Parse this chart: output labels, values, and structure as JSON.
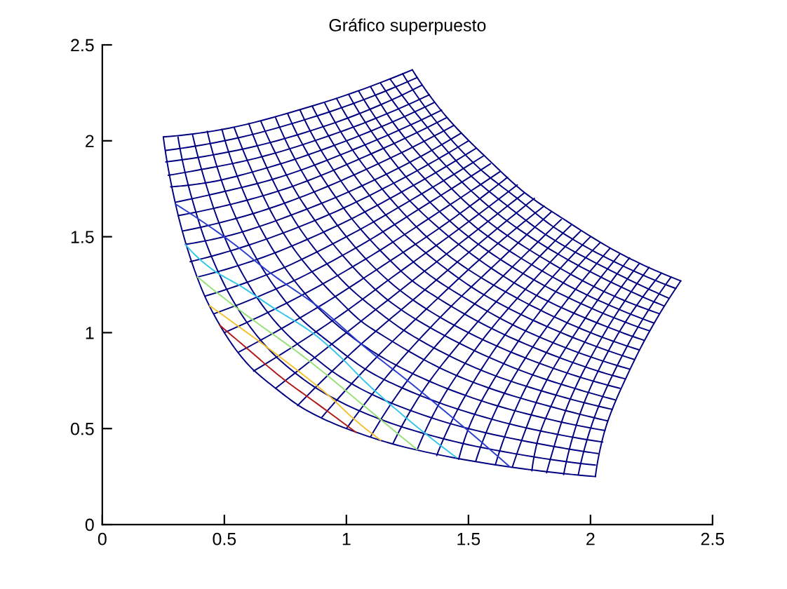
{
  "chart_data": {
    "type": "line",
    "title": "Gráfico superpuesto",
    "xlim": [
      0,
      2.5
    ],
    "ylim": [
      0,
      2.5
    ],
    "xticks": [
      0,
      0.5,
      1,
      1.5,
      2,
      2.5
    ],
    "yticks": [
      0,
      0.5,
      1,
      1.5,
      2,
      2.5
    ],
    "series": [
      {
        "color": "#000080",
        "x": [
          0.25,
          0.3,
          0.4,
          0.5,
          0.6,
          0.71,
          0.83,
          1.0,
          1.25,
          1.67,
          2.02
        ],
        "values": [
          2.02,
          1.67,
          1.25,
          1.0,
          0.83,
          0.71,
          0.6,
          0.5,
          0.4,
          0.3,
          0.25
        ]
      },
      {
        "color": "#000080",
        "x": [
          0.31,
          0.4,
          0.5,
          0.6,
          0.7,
          0.79,
          0.89,
          1.04,
          1.25,
          1.56,
          2.02
        ],
        "values": [
          2.02,
          1.56,
          1.25,
          1.04,
          0.89,
          0.79,
          0.7,
          0.6,
          0.5,
          0.4,
          0.31
        ]
      },
      {
        "color": "#000080",
        "x": [
          0.37,
          0.4,
          0.5,
          0.6,
          0.7,
          0.8,
          0.87,
          0.94,
          1.07,
          1.25,
          1.5,
          1.88,
          2.03
        ],
        "values": [
          2.03,
          1.88,
          1.5,
          1.25,
          1.07,
          0.94,
          0.87,
          0.8,
          0.7,
          0.6,
          0.5,
          0.4,
          0.37
        ]
      },
      {
        "color": "#000080",
        "x": [
          0.43,
          0.5,
          0.6,
          0.7,
          0.8,
          0.94,
          1.09,
          1.25,
          1.46,
          1.75,
          2.05
        ],
        "values": [
          2.05,
          1.75,
          1.46,
          1.25,
          1.09,
          0.94,
          0.8,
          0.7,
          0.6,
          0.5,
          0.43
        ]
      },
      {
        "color": "#000080",
        "x": [
          0.49,
          0.6,
          0.7,
          0.8,
          0.9,
          1.0,
          1.11,
          1.25,
          1.43,
          1.67,
          2.06
        ],
        "values": [
          2.06,
          1.67,
          1.43,
          1.25,
          1.11,
          1.0,
          0.9,
          0.8,
          0.7,
          0.6,
          0.49
        ]
      },
      {
        "color": "#000080",
        "x": [
          0.54,
          0.6,
          0.7,
          0.8,
          1.0,
          1.06,
          1.13,
          1.41,
          1.61,
          1.88,
          2.07
        ],
        "values": [
          2.07,
          1.88,
          1.61,
          1.41,
          1.13,
          1.06,
          1.0,
          0.8,
          0.7,
          0.6,
          0.54
        ]
      },
      {
        "color": "#000080",
        "x": [
          0.6,
          0.7,
          0.8,
          1.0,
          1.12,
          1.25,
          1.56,
          1.79,
          2.09
        ],
        "values": [
          2.09,
          1.79,
          1.56,
          1.25,
          1.12,
          1.0,
          0.8,
          0.7,
          0.6
        ]
      },
      {
        "color": "#000080",
        "x": [
          0.65,
          0.7,
          0.8,
          1.0,
          1.17,
          1.38,
          1.72,
          1.96,
          2.1
        ],
        "values": [
          2.1,
          1.96,
          1.72,
          1.38,
          1.17,
          1.0,
          0.8,
          0.7,
          0.65
        ]
      },
      {
        "color": "#000080",
        "x": [
          0.71,
          0.8,
          1.0,
          1.22,
          1.5,
          1.88,
          2.12
        ],
        "values": [
          2.12,
          1.88,
          1.5,
          1.22,
          1.0,
          0.8,
          0.71
        ]
      },
      {
        "color": "#000080",
        "x": [
          0.76,
          0.8,
          1.0,
          1.2,
          1.27,
          1.35,
          1.63,
          2.03,
          2.14
        ],
        "values": [
          2.14,
          2.03,
          1.63,
          1.35,
          1.27,
          1.2,
          1.0,
          0.8,
          0.76
        ]
      },
      {
        "color": "#000080",
        "x": [
          0.81,
          1.0,
          1.2,
          1.32,
          1.46,
          1.75,
          2.16
        ],
        "values": [
          2.16,
          1.75,
          1.46,
          1.32,
          1.2,
          1.0,
          0.81
        ]
      },
      {
        "color": "#000080",
        "x": [
          0.86,
          1.0,
          1.2,
          1.37,
          1.56,
          1.88,
          2.18
        ],
        "values": [
          2.18,
          1.88,
          1.56,
          1.37,
          1.2,
          1.0,
          0.86
        ]
      },
      {
        "color": "#000080",
        "x": [
          0.91,
          1.0,
          1.2,
          1.41,
          1.67,
          2.0,
          2.2
        ],
        "values": [
          2.2,
          2.0,
          1.67,
          1.41,
          1.2,
          1.0,
          0.91
        ]
      },
      {
        "color": "#000080",
        "x": [
          0.96,
          1.0,
          1.2,
          1.46,
          1.77,
          2.13,
          2.22
        ],
        "values": [
          2.22,
          2.13,
          1.77,
          1.46,
          1.2,
          1.0,
          0.96
        ]
      },
      {
        "color": "#000080",
        "x": [
          1.01,
          1.2,
          1.35,
          1.5,
          1.67,
          1.88,
          2.24
        ],
        "values": [
          2.24,
          1.88,
          1.67,
          1.5,
          1.35,
          1.2,
          1.01
        ]
      },
      {
        "color": "#000080",
        "x": [
          1.05,
          1.2,
          1.4,
          1.54,
          1.7,
          1.98,
          2.26
        ],
        "values": [
          2.26,
          1.98,
          1.7,
          1.54,
          1.4,
          1.2,
          1.05
        ]
      },
      {
        "color": "#000080",
        "x": [
          1.1,
          1.2,
          1.4,
          1.58,
          1.79,
          2.08,
          2.28
        ],
        "values": [
          2.28,
          2.08,
          1.79,
          1.58,
          1.4,
          1.2,
          1.1
        ]
      },
      {
        "color": "#000080",
        "x": [
          1.14,
          1.2,
          1.4,
          1.62,
          1.88,
          2.19,
          2.3
        ],
        "values": [
          2.3,
          2.19,
          1.88,
          1.62,
          1.4,
          1.2,
          1.14
        ]
      },
      {
        "color": "#000080",
        "x": [
          1.18,
          1.3,
          1.5,
          1.66,
          1.83,
          2.12,
          2.32
        ],
        "values": [
          2.32,
          2.12,
          1.83,
          1.66,
          1.5,
          1.3,
          1.18
        ]
      },
      {
        "color": "#000080",
        "x": [
          1.23,
          1.4,
          1.55,
          1.7,
          1.85,
          2.05,
          2.35
        ],
        "values": [
          2.35,
          2.05,
          1.85,
          1.7,
          1.55,
          1.4,
          1.23
        ]
      },
      {
        "color": "#000080",
        "x": [
          1.27,
          1.4,
          1.6,
          1.73,
          1.88,
          2.14,
          2.37
        ],
        "values": [
          2.37,
          2.14,
          1.88,
          1.73,
          1.6,
          1.4,
          1.27
        ]
      },
      {
        "color": "#000080",
        "x": [
          0.25,
          0.45,
          0.83,
          1.27
        ],
        "values": [
          2.02,
          2.05,
          2.17,
          2.37
        ]
      },
      {
        "color": "#000080",
        "x": [
          0.26,
          0.5,
          0.88,
          1.29
        ],
        "values": [
          1.95,
          2.0,
          2.13,
          2.33
        ]
      },
      {
        "color": "#000080",
        "x": [
          0.26,
          0.55,
          0.92,
          1.31
        ],
        "values": [
          1.89,
          1.95,
          2.08,
          2.29
        ]
      },
      {
        "color": "#000080",
        "x": [
          0.27,
          0.36,
          0.6,
          0.96,
          1.34
        ],
        "values": [
          1.82,
          1.84,
          1.9,
          2.04,
          2.24
        ]
      },
      {
        "color": "#000080",
        "x": [
          0.28,
          0.42,
          0.65,
          1.0,
          1.36
        ],
        "values": [
          1.76,
          1.78,
          1.85,
          2.0,
          2.2
        ]
      },
      {
        "color": "#000080",
        "x": [
          0.3,
          0.48,
          0.7,
          1.04,
          1.39
        ],
        "values": [
          1.68,
          1.73,
          1.8,
          1.96,
          2.16
        ]
      },
      {
        "color": "#000080",
        "x": [
          0.31,
          0.53,
          0.75,
          1.08,
          1.41
        ],
        "values": [
          1.61,
          1.67,
          1.75,
          1.92,
          2.12
        ]
      },
      {
        "color": "#000080",
        "x": [
          0.33,
          0.59,
          0.8,
          1.13,
          1.44
        ],
        "values": [
          1.53,
          1.61,
          1.7,
          1.88,
          2.08
        ]
      },
      {
        "color": "#000080",
        "x": [
          0.34,
          0.5,
          0.85,
          1.17,
          1.47
        ],
        "values": [
          1.46,
          1.5,
          1.65,
          1.83,
          2.04
        ]
      },
      {
        "color": "#000080",
        "x": [
          0.36,
          0.56,
          0.9,
          1.21,
          1.5
        ],
        "values": [
          1.37,
          1.44,
          1.6,
          1.79,
          2.0
        ]
      },
      {
        "color": "#000080",
        "x": [
          0.39,
          0.63,
          0.95,
          1.25,
          1.53
        ],
        "values": [
          1.29,
          1.38,
          1.55,
          1.75,
          1.96
        ]
      },
      {
        "color": "#000080",
        "x": [
          0.42,
          0.69,
          1.0,
          1.29,
          1.56
        ],
        "values": [
          1.19,
          1.31,
          1.5,
          1.71,
          1.92
        ]
      },
      {
        "color": "#000080",
        "x": [
          0.46,
          0.75,
          1.05,
          1.33,
          1.59
        ],
        "values": [
          1.1,
          1.25,
          1.45,
          1.67,
          1.88
        ]
      },
      {
        "color": "#000080",
        "x": [
          0.5,
          0.81,
          1.1,
          1.38,
          1.63
        ],
        "values": [
          1.0,
          1.19,
          1.4,
          1.63,
          1.84
        ]
      },
      {
        "color": "#000080",
        "x": [
          0.56,
          0.88,
          1.15,
          1.42,
          1.66
        ],
        "values": [
          0.9,
          1.13,
          1.35,
          1.58,
          1.81
        ]
      },
      {
        "color": "#000080",
        "x": [
          0.62,
          0.94,
          1.2,
          1.46,
          1.7
        ],
        "values": [
          0.8,
          1.06,
          1.3,
          1.54,
          1.77
        ]
      },
      {
        "color": "#000080",
        "x": [
          0.71,
          1.0,
          1.25,
          1.5,
          1.73
        ],
        "values": [
          0.71,
          1.0,
          1.25,
          1.5,
          1.73
        ]
      },
      {
        "color": "#000080",
        "x": [
          0.8,
          1.06,
          1.3,
          1.54,
          1.77
        ],
        "values": [
          0.62,
          0.94,
          1.2,
          1.46,
          1.7
        ]
      },
      {
        "color": "#000080",
        "x": [
          0.9,
          1.13,
          1.35,
          1.58,
          1.81
        ],
        "values": [
          0.56,
          0.88,
          1.15,
          1.42,
          1.66
        ]
      },
      {
        "color": "#000080",
        "x": [
          1.0,
          1.19,
          1.4,
          1.63,
          1.84
        ],
        "values": [
          0.5,
          0.81,
          1.1,
          1.38,
          1.63
        ]
      },
      {
        "color": "#000080",
        "x": [
          1.1,
          1.25,
          1.45,
          1.67,
          1.88
        ],
        "values": [
          0.46,
          0.75,
          1.05,
          1.33,
          1.59
        ]
      },
      {
        "color": "#000080",
        "x": [
          1.19,
          1.31,
          1.5,
          1.71,
          1.92
        ],
        "values": [
          0.42,
          0.69,
          1.0,
          1.29,
          1.56
        ]
      },
      {
        "color": "#000080",
        "x": [
          1.29,
          1.38,
          1.55,
          1.75,
          1.96
        ],
        "values": [
          0.39,
          0.63,
          0.95,
          1.25,
          1.53
        ]
      },
      {
        "color": "#000080",
        "x": [
          1.37,
          1.44,
          1.6,
          1.79,
          2.0
        ],
        "values": [
          0.36,
          0.56,
          0.9,
          1.21,
          1.5
        ]
      },
      {
        "color": "#000080",
        "x": [
          1.46,
          1.5,
          1.65,
          1.83,
          2.04
        ],
        "values": [
          0.34,
          0.5,
          0.85,
          1.17,
          1.47
        ]
      },
      {
        "color": "#000080",
        "x": [
          1.53,
          1.61,
          1.7,
          1.88,
          2.08
        ],
        "values": [
          0.33,
          0.59,
          0.8,
          1.13,
          1.44
        ]
      },
      {
        "color": "#000080",
        "x": [
          1.61,
          1.67,
          1.75,
          1.92,
          2.12
        ],
        "values": [
          0.31,
          0.53,
          0.75,
          1.08,
          1.41
        ]
      },
      {
        "color": "#000080",
        "x": [
          1.68,
          1.73,
          1.8,
          1.96,
          2.16
        ],
        "values": [
          0.3,
          0.48,
          0.7,
          1.04,
          1.39
        ]
      },
      {
        "color": "#000080",
        "x": [
          1.76,
          1.78,
          1.85,
          2.0,
          2.2
        ],
        "values": [
          0.28,
          0.42,
          0.65,
          1.0,
          1.36
        ]
      },
      {
        "color": "#000080",
        "x": [
          1.82,
          1.84,
          1.9,
          2.04,
          2.24
        ],
        "values": [
          0.27,
          0.36,
          0.6,
          0.96,
          1.34
        ]
      },
      {
        "color": "#000080",
        "x": [
          1.89,
          1.95,
          2.08,
          2.29
        ],
        "values": [
          0.26,
          0.55,
          0.92,
          1.31
        ]
      },
      {
        "color": "#000080",
        "x": [
          1.95,
          2.0,
          2.13,
          2.33
        ],
        "values": [
          0.26,
          0.5,
          0.88,
          1.29
        ]
      },
      {
        "color": "#000080",
        "x": [
          2.02,
          2.05,
          2.17,
          2.37
        ],
        "values": [
          0.25,
          0.45,
          0.83,
          1.27
        ]
      },
      {
        "color": "#2a3fd0",
        "x": [
          0.3,
          0.51,
          0.7,
          0.89,
          1.08,
          1.26,
          1.67
        ],
        "values": [
          1.67,
          1.49,
          1.3,
          1.13,
          0.92,
          0.74,
          0.3
        ]
      },
      {
        "color": "#33c6e8",
        "x": [
          0.34,
          0.45,
          0.57,
          0.7,
          0.86,
          0.97,
          1.08,
          1.25,
          1.45
        ],
        "values": [
          1.46,
          1.33,
          1.24,
          1.13,
          1.0,
          0.88,
          0.74,
          0.55,
          0.35
        ]
      },
      {
        "color": "#98e07a",
        "x": [
          0.39,
          0.56,
          0.84,
          1.08,
          1.29
        ],
        "values": [
          1.29,
          1.12,
          0.86,
          0.61,
          0.39
        ]
      },
      {
        "color": "#f2c230",
        "x": [
          0.44,
          0.55,
          0.7,
          0.92,
          1.04,
          1.14
        ],
        "values": [
          1.14,
          1.04,
          0.9,
          0.68,
          0.54,
          0.44
        ]
      },
      {
        "color": "#b01818",
        "x": [
          0.48,
          0.6,
          0.73,
          0.88,
          1.04
        ],
        "values": [
          1.04,
          0.91,
          0.77,
          0.63,
          0.48
        ]
      }
    ]
  }
}
